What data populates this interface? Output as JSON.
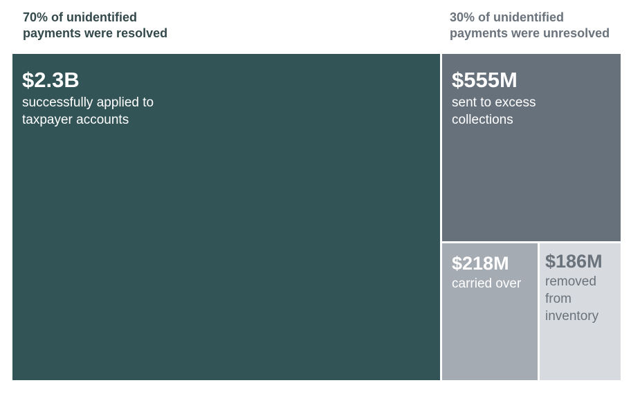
{
  "chart_data": {
    "type": "treemap",
    "groups": [
      {
        "label_lines": [
          "70% of unidentified",
          "payments were resolved"
        ],
        "percent": 70,
        "color": "#33484a",
        "items": [
          {
            "amount": "$2.3B",
            "value_millions": 2300,
            "desc_lines": [
              "successfully applied to",
              "taxpayer accounts"
            ],
            "fill": "#335456",
            "text_color": "#ffffff"
          }
        ]
      },
      {
        "label_lines": [
          "30% of unidentified",
          "payments were unresolved"
        ],
        "percent": 30,
        "color": "#6a727b",
        "items": [
          {
            "amount": "$555M",
            "value_millions": 555,
            "desc_lines": [
              "sent to excess",
              "collections"
            ],
            "fill": "#67717c",
            "text_color": "#ffffff"
          },
          {
            "amount": "$218M",
            "value_millions": 218,
            "desc_lines": [
              "carried over"
            ],
            "fill": "#a5abb3",
            "text_color": "#ffffff"
          },
          {
            "amount": "$186M",
            "value_millions": 186,
            "desc_lines": [
              "removed",
              "from",
              "inventory"
            ],
            "fill": "#d7dade",
            "text_color": "#6a727b"
          }
        ]
      }
    ]
  }
}
